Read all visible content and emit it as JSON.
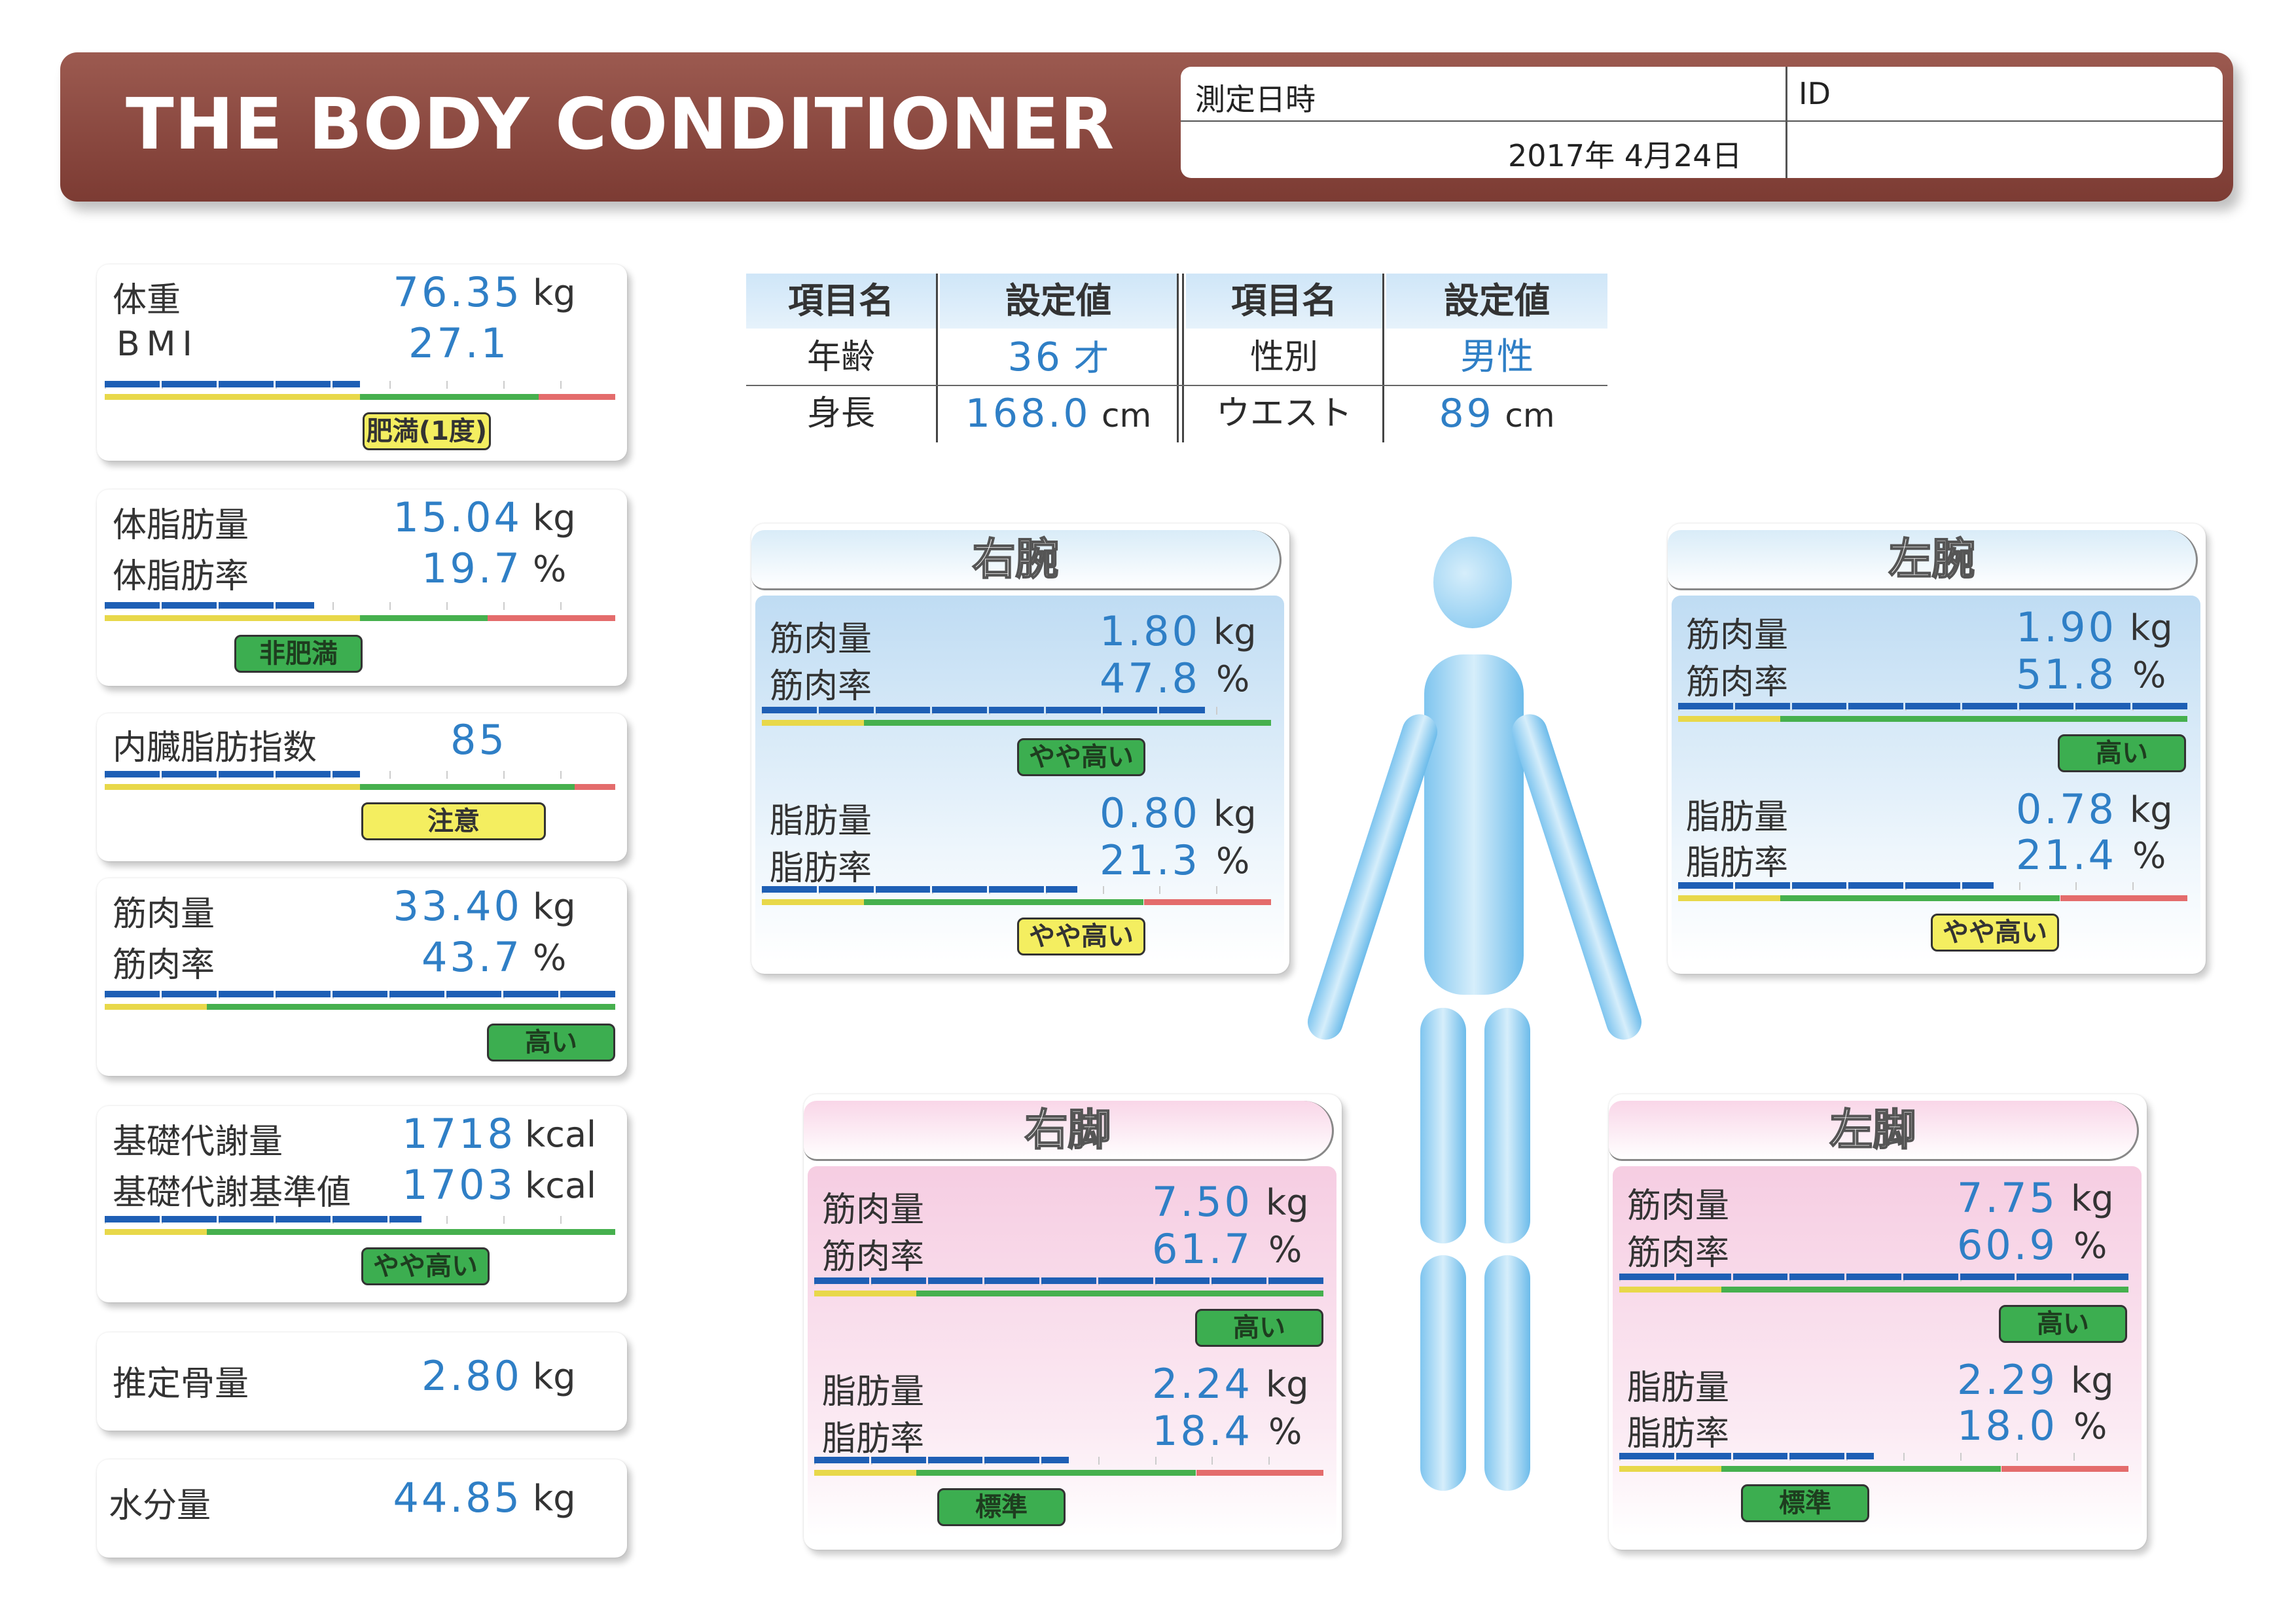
{
  "header": {
    "title": "THE BODY CONDITIONER",
    "date_label": "測定日時",
    "date_value": "2017年 4月24日",
    "id_label": "ID",
    "id_value": ""
  },
  "left_cards": {
    "weight": {
      "label": "体重",
      "value": "76.35",
      "unit": "kg",
      "bmi_label": "BMI",
      "bmi_value": "27.1",
      "level": 0.5,
      "badge": "肥満(1度)"
    },
    "fat": {
      "mass_label": "体脂肪量",
      "mass_value": "15.04",
      "mass_unit": "kg",
      "rate_label": "体脂肪率",
      "rate_value": "19.7",
      "rate_unit": "%",
      "level": 0.41,
      "badge": "非肥満"
    },
    "visceral": {
      "label": "内臓脂肪指数",
      "value": "85",
      "level": 0.5,
      "badge": "注意"
    },
    "muscle": {
      "mass_label": "筋肉量",
      "mass_value": "33.40",
      "mass_unit": "kg",
      "rate_label": "筋肉率",
      "rate_value": "43.7",
      "rate_unit": "%",
      "level": 1.0,
      "badge": "高い"
    },
    "bmr": {
      "label": "基礎代謝量",
      "value": "1718",
      "unit": "kcal",
      "std_label": "基礎代謝基準値",
      "std_value": "1703",
      "std_unit": "kcal",
      "level": 0.62,
      "badge": "やや高い"
    },
    "bone": {
      "label": "推定骨量",
      "value": "2.80",
      "unit": "kg"
    },
    "water": {
      "label": "水分量",
      "value": "44.85",
      "unit": "kg"
    }
  },
  "settings": {
    "headers": [
      "項目名",
      "設定値",
      "項目名",
      "設定値"
    ],
    "age_label": "年齢",
    "age_value": "36",
    "age_unit": "才",
    "sex_label": "性別",
    "sex_value": "男性",
    "height_label": "身長",
    "height_value": "168.0",
    "height_unit": "cm",
    "waist_label": "ウエスト",
    "waist_value": "89",
    "waist_unit": "cm"
  },
  "segments": {
    "right_arm": {
      "title": "右腕",
      "muscle_mass_label": "筋肉量",
      "muscle_mass": "1.80",
      "muscle_rate_label": "筋肉率",
      "muscle_rate": "47.8",
      "muscle_level": 0.87,
      "muscle_badge": "やや高い",
      "fat_mass_label": "脂肪量",
      "fat_mass": "0.80",
      "fat_rate_label": "脂肪率",
      "fat_rate": "21.3",
      "fat_level": 0.62,
      "fat_badge": "やや高い"
    },
    "left_arm": {
      "title": "左腕",
      "muscle_mass_label": "筋肉量",
      "muscle_mass": "1.90",
      "muscle_rate_label": "筋肉率",
      "muscle_rate": "51.8",
      "muscle_level": 1.0,
      "muscle_badge": "高い",
      "fat_mass_label": "脂肪量",
      "fat_mass": "0.78",
      "fat_rate_label": "脂肪率",
      "fat_rate": "21.4",
      "fat_level": 0.62,
      "fat_badge": "やや高い"
    },
    "right_leg": {
      "title": "右脚",
      "muscle_mass_label": "筋肉量",
      "muscle_mass": "7.50",
      "muscle_rate_label": "筋肉率",
      "muscle_rate": "61.7",
      "muscle_level": 1.0,
      "muscle_badge": "高い",
      "fat_mass_label": "脂肪量",
      "fat_mass": "2.24",
      "fat_rate_label": "脂肪率",
      "fat_rate": "18.4",
      "fat_level": 0.5,
      "fat_badge": "標準"
    },
    "left_leg": {
      "title": "左脚",
      "muscle_mass_label": "筋肉量",
      "muscle_mass": "7.75",
      "muscle_rate_label": "筋肉率",
      "muscle_rate": "60.9",
      "muscle_level": 1.0,
      "muscle_badge": "高い",
      "fat_mass_label": "脂肪量",
      "fat_mass": "2.29",
      "fat_rate_label": "脂肪率",
      "fat_rate": "18.0",
      "fat_level": 0.5,
      "fat_badge": "標準"
    }
  },
  "colors": {
    "value_blue": "#2f7fc6",
    "bar_blue": "#1e5fb5",
    "zone_yellow": "#e8d84a",
    "zone_green": "#46b04e",
    "zone_red": "#e46c6c",
    "header_brown": "#8a473e"
  }
}
